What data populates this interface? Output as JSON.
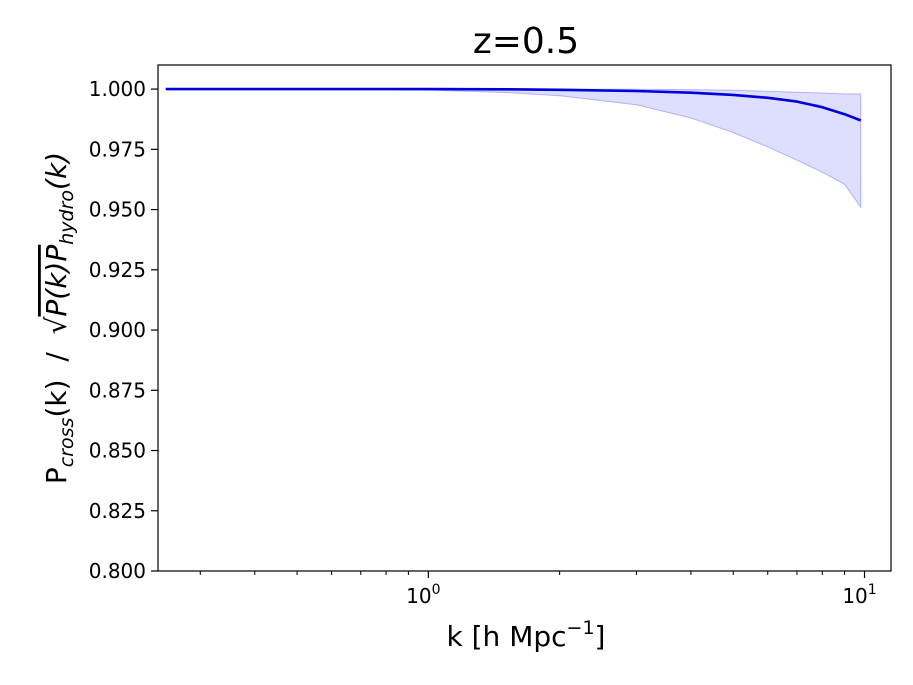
{
  "chart_data": {
    "type": "line",
    "title": "z=0.5",
    "xlabel": {
      "main": "k [h Mpc",
      "sup": "−1",
      "close": "]"
    },
    "ylabel": {
      "p": "P",
      "sub_cross": "cross",
      "mid": "(k)  /  ",
      "sqrt": "√",
      "inner1": "P(k)P",
      "sub_hydro": "hydro",
      "inner2": "(k)"
    },
    "xscale": "log",
    "xlim": [
      0.24,
      11.5
    ],
    "ylim": [
      0.8,
      1.01
    ],
    "y_ticks": [
      0.8,
      0.825,
      0.85,
      0.875,
      0.9,
      0.925,
      0.95,
      0.975,
      1.0
    ],
    "y_tick_labels": [
      "0.800",
      "0.825",
      "0.850",
      "0.875",
      "0.900",
      "0.925",
      "0.950",
      "0.975",
      "1.000"
    ],
    "x_major_ticks": [
      {
        "value": 1,
        "base": "10",
        "exp": "0"
      },
      {
        "value": 10,
        "base": "10",
        "exp": "1"
      }
    ],
    "x_minor_ticks": [
      0.3,
      0.4,
      0.5,
      0.6,
      0.7,
      0.8,
      0.9,
      2,
      3,
      4,
      5,
      6,
      7,
      8,
      9
    ],
    "grid": false,
    "series": [
      {
        "color": "#0000dd",
        "x": [
          0.25,
          0.3,
          0.4,
          0.5,
          0.7,
          1.0,
          1.5,
          2.0,
          3.0,
          4.0,
          5.0,
          6.0,
          7.0,
          8.0,
          9.0,
          9.8
        ],
        "y": [
          1.0,
          1.0,
          1.0,
          1.0,
          1.0,
          1.0,
          0.9999,
          0.9997,
          0.9992,
          0.9985,
          0.9976,
          0.9964,
          0.9948,
          0.9925,
          0.9896,
          0.987
        ],
        "band": {
          "fill": "#0000ff",
          "opacity": 0.13,
          "upper": [
            1.0,
            1.0,
            1.0,
            1.0,
            1.0,
            1.0,
            1.0,
            1.0,
            0.9999,
            0.9998,
            0.9995,
            0.9991,
            0.9987,
            0.9984,
            0.998,
            0.998
          ],
          "lower": [
            1.0,
            1.0,
            1.0,
            1.0,
            0.9999,
            0.9996,
            0.9986,
            0.9972,
            0.9935,
            0.988,
            0.982,
            0.976,
            0.9705,
            0.9655,
            0.9605,
            0.951
          ]
        }
      }
    ]
  }
}
